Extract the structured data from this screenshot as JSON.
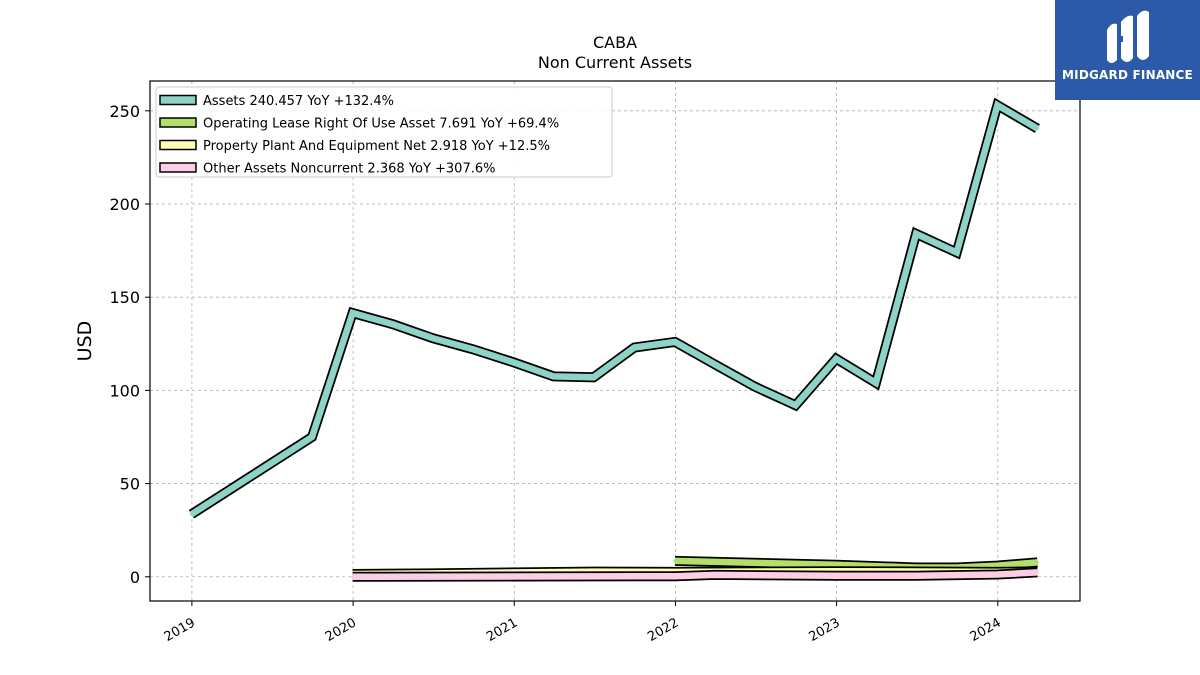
{
  "brand": {
    "name": "MIDGARD FINANCE",
    "color": "#2c5aa8"
  },
  "chart_data": {
    "type": "line",
    "title": "CABA",
    "subtitle": "Non Current  Assets",
    "ylabel": "USD",
    "xlabel": "",
    "ylim": [
      -13,
      266
    ],
    "xlim": [
      2018.74,
      2024.51
    ],
    "yticks": [
      0,
      50,
      100,
      150,
      200,
      250
    ],
    "xticks": [
      2019,
      2020,
      2021,
      2022,
      2023,
      2024
    ],
    "grid": true,
    "legend_position": "top-left",
    "series": [
      {
        "name": "Assets",
        "legend_label": "Assets  240.457 YoY +132.4%",
        "color": "#8dd3c7",
        "points": [
          [
            "2018-12-31",
            33.5
          ],
          [
            "2019-09-30",
            75.0
          ],
          [
            "2019-12-31",
            141.5
          ],
          [
            "2020-03-31",
            135.5
          ],
          [
            "2020-06-30",
            128.0
          ],
          [
            "2020-09-30",
            122.0
          ],
          [
            "2020-12-31",
            115.0
          ],
          [
            "2021-03-31",
            107.5
          ],
          [
            "2021-06-30",
            107.0
          ],
          [
            "2021-09-30",
            123.0
          ],
          [
            "2021-12-31",
            126.0
          ],
          [
            "2022-03-31",
            114.0
          ],
          [
            "2022-06-30",
            102.0
          ],
          [
            "2022-09-30",
            92.0
          ],
          [
            "2022-12-31",
            117.0
          ],
          [
            "2023-03-31",
            104.0
          ],
          [
            "2023-06-30",
            184.0
          ],
          [
            "2023-09-30",
            174.0
          ],
          [
            "2023-12-31",
            253.0
          ],
          [
            "2024-03-31",
            240.457
          ]
        ]
      },
      {
        "name": "Operating Lease Right Of Use Asset",
        "legend_label": "Operating Lease Right Of Use Asset  7.691 YoY +69.4%",
        "color": "#b3de69",
        "points": [
          [
            "2021-12-31",
            8.5
          ],
          [
            "2022-12-31",
            6.5
          ],
          [
            "2023-06-30",
            5.0
          ],
          [
            "2023-09-30",
            5.0
          ],
          [
            "2023-12-31",
            6.0
          ],
          [
            "2024-03-31",
            7.691
          ]
        ]
      },
      {
        "name": "Property Plant And Equipment Net",
        "legend_label": "Property Plant And Equipment Net  2.918 YoY +12.5%",
        "color": "#ffffb3",
        "points": [
          [
            "2019-12-31",
            1.5
          ],
          [
            "2020-06-30",
            1.8
          ],
          [
            "2021-06-30",
            2.8
          ],
          [
            "2021-12-31",
            2.6
          ],
          [
            "2022-12-31",
            3.0
          ],
          [
            "2023-12-31",
            2.6
          ],
          [
            "2024-03-31",
            2.918
          ]
        ]
      },
      {
        "name": "Other Assets Noncurrent",
        "legend_label": "Other Assets Noncurrent  2.368 YoY +307.6%",
        "color": "#fccde5",
        "points": [
          [
            "2019-12-31",
            0.0
          ],
          [
            "2021-12-31",
            0.3
          ],
          [
            "2022-03-31",
            1.0
          ],
          [
            "2022-12-31",
            0.5
          ],
          [
            "2023-06-30",
            0.6
          ],
          [
            "2023-12-31",
            1.2
          ],
          [
            "2024-03-31",
            2.368
          ]
        ]
      }
    ]
  }
}
